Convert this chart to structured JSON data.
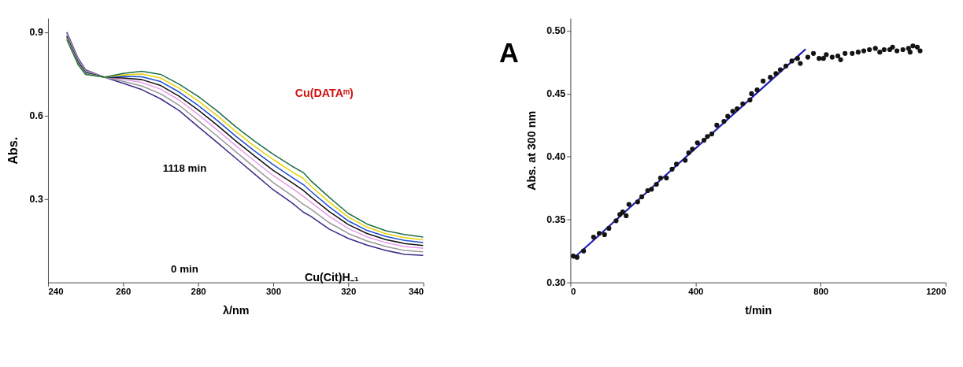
{
  "chart_data": [
    {
      "type": "line",
      "xlabel": "λ/nm",
      "ylabel": "Abs.",
      "xlim": [
        240,
        340
      ],
      "xticks": [
        240,
        260,
        280,
        300,
        320,
        340
      ],
      "ylim": [
        0,
        0.95
      ],
      "yticks": [
        0.3,
        0.6,
        0.9
      ],
      "legend": false,
      "grid": false,
      "line_style": "solid",
      "x": [
        245,
        248,
        250,
        255,
        260,
        265,
        270,
        275,
        280,
        285,
        290,
        295,
        300,
        305,
        308,
        310,
        315,
        320,
        325,
        330,
        335,
        340
      ],
      "series": [
        {
          "color": "#3b2a8a",
          "values": [
            0.9,
            0.806,
            0.764,
            0.738,
            0.716,
            0.693,
            0.66,
            0.617,
            0.56,
            0.504,
            0.447,
            0.39,
            0.333,
            0.286,
            0.253,
            0.238,
            0.191,
            0.158,
            0.134,
            0.115,
            0.101,
            0.097
          ]
        },
        {
          "color": "#999999",
          "values": [
            0.895,
            0.801,
            0.761,
            0.738,
            0.723,
            0.706,
            0.678,
            0.636,
            0.582,
            0.527,
            0.47,
            0.414,
            0.359,
            0.312,
            0.281,
            0.264,
            0.214,
            0.176,
            0.149,
            0.129,
            0.115,
            0.11
          ]
        },
        {
          "color": "#e79be8",
          "values": [
            0.889,
            0.797,
            0.758,
            0.738,
            0.73,
            0.719,
            0.695,
            0.655,
            0.604,
            0.549,
            0.492,
            0.437,
            0.384,
            0.339,
            0.31,
            0.289,
            0.237,
            0.194,
            0.164,
            0.143,
            0.129,
            0.123
          ]
        },
        {
          "color": "#111111",
          "values": [
            0.885,
            0.793,
            0.755,
            0.738,
            0.735,
            0.729,
            0.708,
            0.669,
            0.62,
            0.566,
            0.509,
            0.455,
            0.403,
            0.359,
            0.331,
            0.308,
            0.254,
            0.208,
            0.176,
            0.154,
            0.14,
            0.133
          ]
        },
        {
          "color": "#1f4fd6",
          "values": [
            0.881,
            0.79,
            0.753,
            0.738,
            0.741,
            0.739,
            0.722,
            0.684,
            0.636,
            0.583,
            0.526,
            0.473,
            0.423,
            0.378,
            0.352,
            0.328,
            0.271,
            0.221,
            0.187,
            0.165,
            0.151,
            0.143
          ]
        },
        {
          "color": "#e8d20a",
          "values": [
            0.877,
            0.786,
            0.75,
            0.738,
            0.746,
            0.749,
            0.735,
            0.698,
            0.653,
            0.6,
            0.543,
            0.49,
            0.442,
            0.398,
            0.374,
            0.347,
            0.288,
            0.235,
            0.199,
            0.175,
            0.161,
            0.153
          ]
        },
        {
          "color": "#1f6e4a",
          "values": [
            0.873,
            0.783,
            0.748,
            0.738,
            0.751,
            0.759,
            0.748,
            0.712,
            0.669,
            0.617,
            0.56,
            0.508,
            0.461,
            0.418,
            0.395,
            0.366,
            0.305,
            0.248,
            0.21,
            0.186,
            0.172,
            0.163
          ]
        }
      ],
      "annotations": [
        "1118 min",
        "0 min",
        "Cu(DATAᵐ)",
        "Cu(Cit)H₋₁"
      ]
    },
    {
      "type": "scatter",
      "xlabel": "t/min",
      "ylabel": "Abs. at 300 nm",
      "xlim": [
        0,
        1200
      ],
      "xticks": [
        0,
        400,
        800,
        {
          "value": 1200,
          "label": "1200"
        }
      ],
      "ylim": [
        0.3,
        0.51
      ],
      "yticks": [
        {
          "value": 0.3,
          "label": "0.30"
        },
        {
          "value": 0.35,
          "label": "0.35"
        },
        {
          "value": 0.4,
          "label": "0.40"
        },
        {
          "value": 0.45,
          "label": "0.45"
        },
        {
          "value": 0.5,
          "label": "0.50"
        }
      ],
      "legend": false,
      "grid": false,
      "series": [
        {
          "type": "scatter",
          "color": "#141414",
          "marker": "circle",
          "x": [
            9,
            21,
            42,
            74,
            92,
            109,
            123,
            146,
            158,
            167,
            178,
            187,
            215,
            228,
            247,
            259,
            275,
            288,
            307,
            325,
            339,
            367,
            378,
            390,
            406,
            427,
            438,
            452,
            468,
            491,
            503,
            519,
            533,
            551,
            574,
            579,
            597,
            616,
            639,
            657,
            671,
            689,
            708,
            726,
            735,
            759,
            777,
            795,
            809,
            818,
            837,
            855,
            864,
            878,
            901,
            920,
            938,
            956,
            975,
            989,
            1003,
            1021,
            1030,
            1044,
            1063,
            1081,
            1086,
            1095,
            1109,
            1118
          ],
          "values": [
            0.321,
            0.32,
            0.325,
            0.336,
            0.339,
            0.338,
            0.343,
            0.349,
            0.354,
            0.356,
            0.353,
            0.362,
            0.364,
            0.368,
            0.373,
            0.374,
            0.378,
            0.383,
            0.383,
            0.39,
            0.394,
            0.397,
            0.403,
            0.406,
            0.411,
            0.413,
            0.416,
            0.418,
            0.425,
            0.428,
            0.432,
            0.436,
            0.438,
            0.442,
            0.445,
            0.45,
            0.453,
            0.46,
            0.463,
            0.466,
            0.469,
            0.472,
            0.476,
            0.478,
            0.474,
            0.479,
            0.482,
            0.478,
            0.478,
            0.481,
            0.479,
            0.48,
            0.477,
            0.482,
            0.482,
            0.483,
            0.484,
            0.485,
            0.486,
            0.483,
            0.485,
            0.485,
            0.487,
            0.484,
            0.485,
            0.486,
            0.483,
            0.488,
            0.487,
            0.484
          ]
        },
        {
          "type": "line",
          "color": "#1a1ab4",
          "x": [
            9,
            752
          ],
          "values": [
            0.319,
            0.4854
          ]
        }
      ],
      "annotations": [
        "A"
      ]
    }
  ]
}
